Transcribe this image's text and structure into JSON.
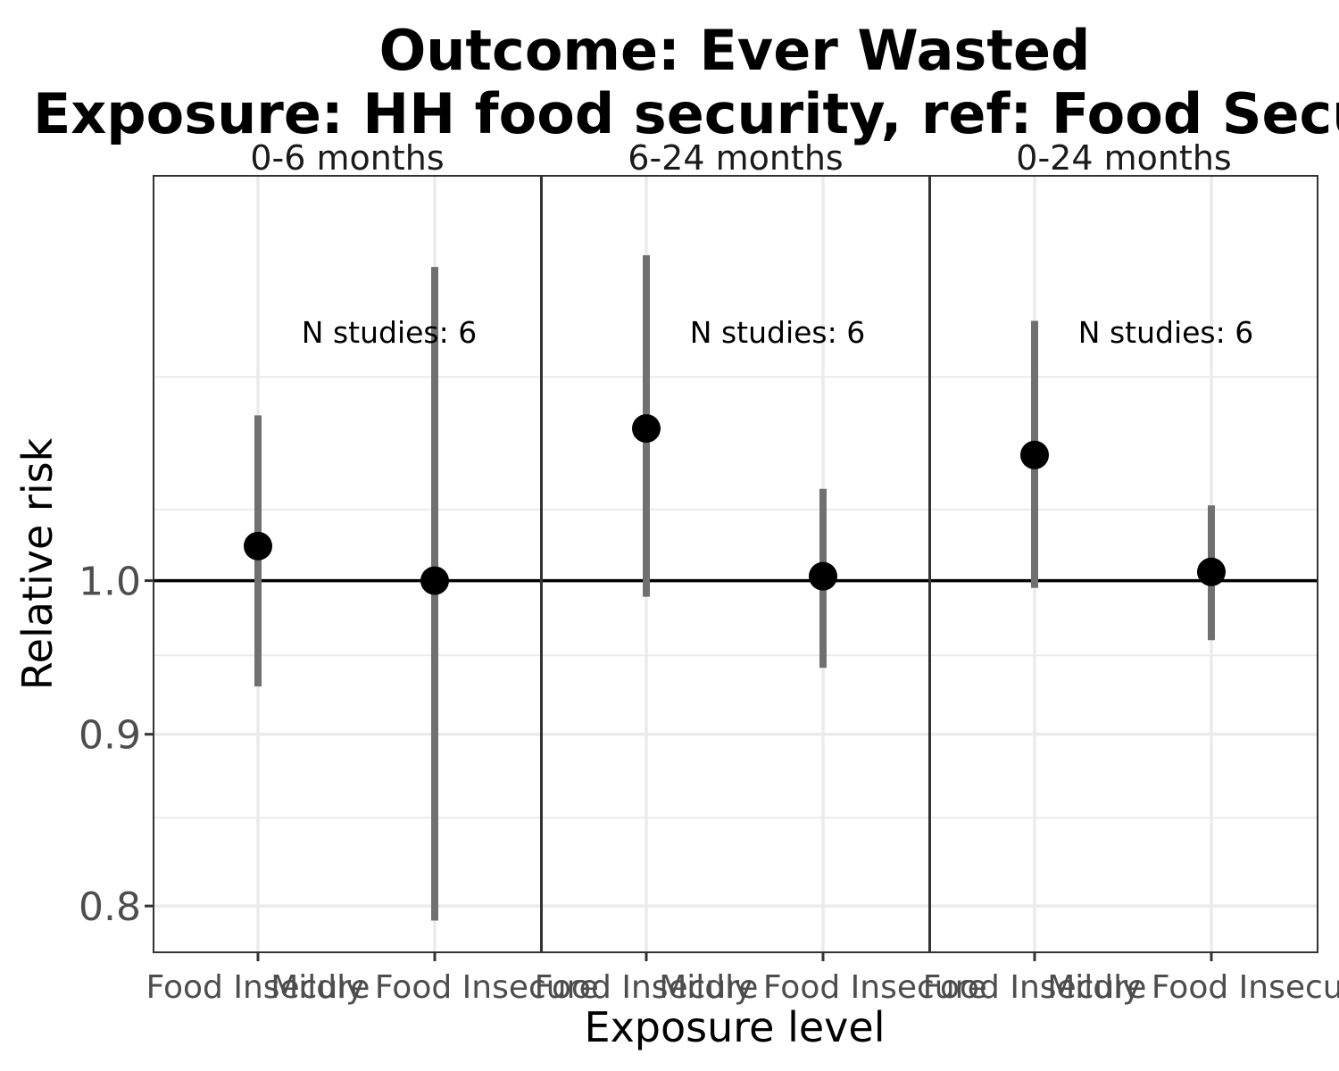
{
  "chart_data": {
    "type": "scatter",
    "title_line1": "Outcome: Ever Wasted",
    "title_line2": "Exposure: HH food security, ref: Food Secure",
    "xlabel": "Exposure level",
    "ylabel": "Relative risk",
    "y_scale": "log",
    "ylim": [
      0.775,
      1.32
    ],
    "y_ticks": [
      0.8,
      0.9,
      1.0
    ],
    "y_tick_labels": [
      "0.8",
      "0.9",
      "1.0"
    ],
    "reference_line": 1.0,
    "categories": [
      "Food Insecure",
      "Mildly Food Insecure"
    ],
    "panels": [
      {
        "label": "0-6 months",
        "annotation": "N studies: 6",
        "points": [
          {
            "category": "Food Insecure",
            "rr": 1.024,
            "ci_lower": 0.93,
            "ci_upper": 1.12
          },
          {
            "category": "Mildly Food Insecure",
            "rr": 1.0,
            "ci_lower": 0.792,
            "ci_upper": 1.24
          }
        ]
      },
      {
        "label": "6-24 months",
        "annotation": "N studies: 6",
        "points": [
          {
            "category": "Food Insecure",
            "rr": 1.11,
            "ci_lower": 0.989,
            "ci_upper": 1.25
          },
          {
            "category": "Mildly Food Insecure",
            "rr": 1.003,
            "ci_lower": 0.942,
            "ci_upper": 1.065
          }
        ]
      },
      {
        "label": "0-24 months",
        "annotation": "N studies: 6",
        "points": [
          {
            "category": "Food Insecure",
            "rr": 1.09,
            "ci_lower": 0.995,
            "ci_upper": 1.195
          },
          {
            "category": "Mildly Food Insecure",
            "rr": 1.006,
            "ci_lower": 0.96,
            "ci_upper": 1.053
          }
        ]
      }
    ],
    "grid": true,
    "colors": {
      "ci_bar": "#707070",
      "point": "#000000",
      "grid": "#ebebeb",
      "panel_border": "#333333"
    }
  }
}
